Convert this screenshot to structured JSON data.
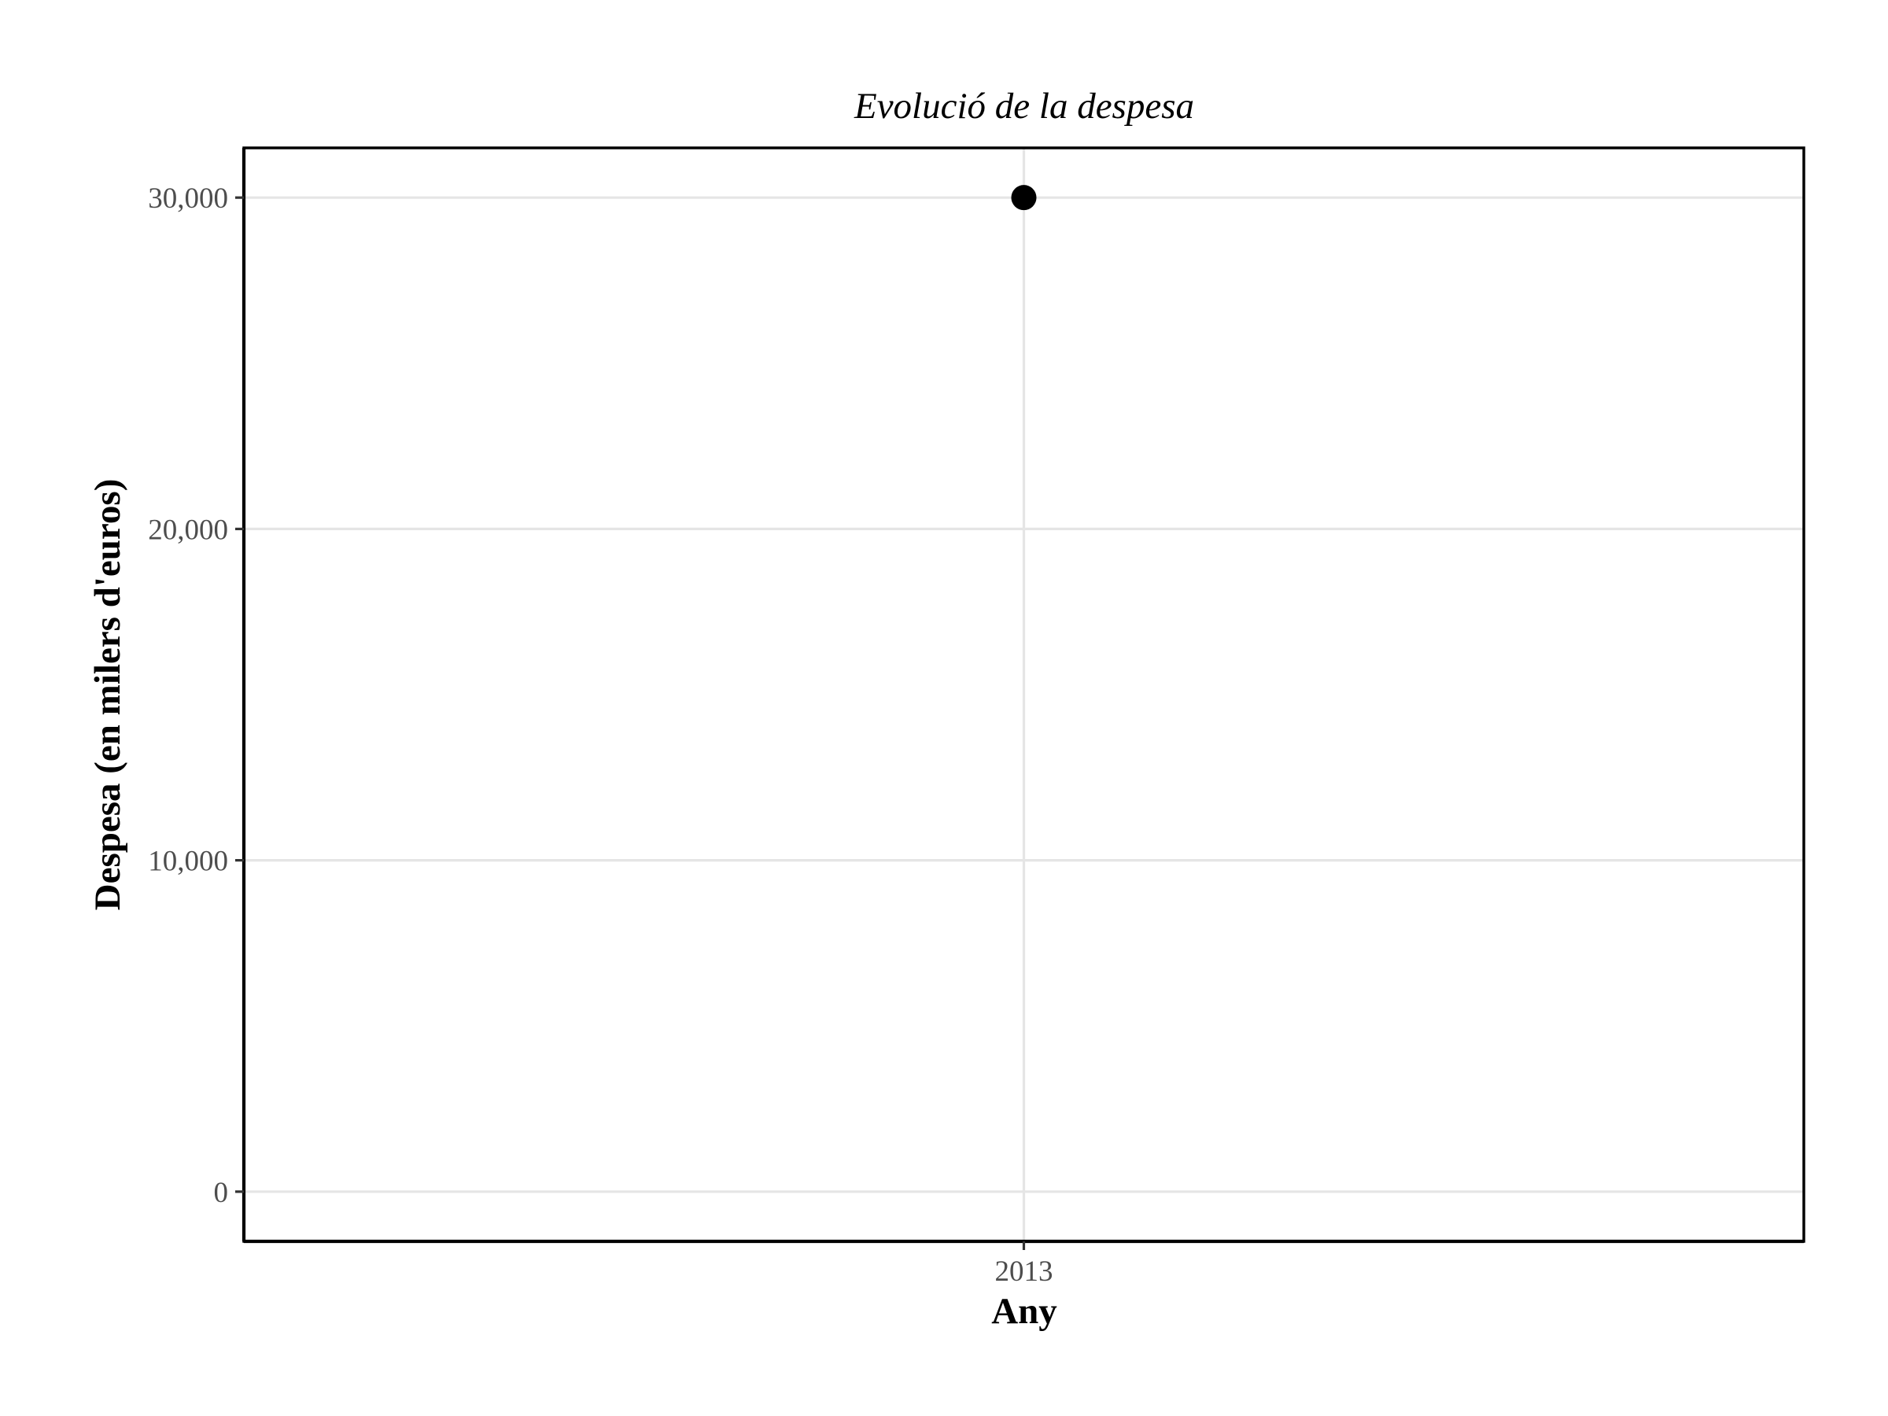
{
  "chart_data": {
    "type": "scatter",
    "title": "Evolució de la despesa",
    "xlabel": "Any",
    "ylabel": "Despesa (en milers d'euros)",
    "categories": [
      "2013"
    ],
    "x_tick_labels": [
      "2013"
    ],
    "y_ticks": [
      0,
      10000,
      20000,
      30000
    ],
    "y_tick_labels": [
      "0",
      "10,000",
      "20,000",
      "30,000"
    ],
    "ylim": [
      -1500,
      31500
    ],
    "grid": true,
    "legend": "none",
    "series": [
      {
        "x": [
          "2013"
        ],
        "values": [
          30000
        ]
      }
    ],
    "colors": {
      "point": "#000000",
      "grid": "#e5e5e5",
      "tick_text": "#4d4d4d",
      "border": "#000000"
    }
  }
}
